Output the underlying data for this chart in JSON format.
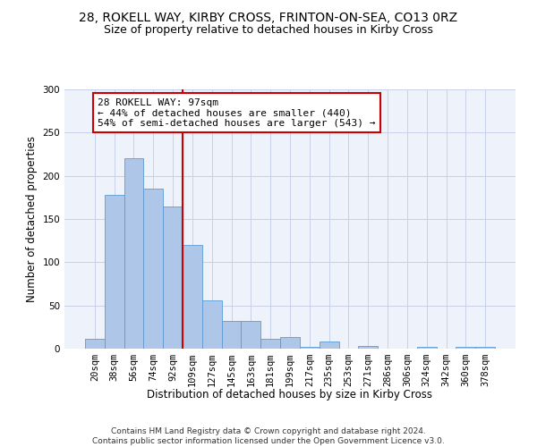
{
  "title1": "28, ROKELL WAY, KIRBY CROSS, FRINTON-ON-SEA, CO13 0RZ",
  "title2": "Size of property relative to detached houses in Kirby Cross",
  "xlabel": "Distribution of detached houses by size in Kirby Cross",
  "ylabel": "Number of detached properties",
  "categories": [
    "20sqm",
    "38sqm",
    "56sqm",
    "74sqm",
    "92sqm",
    "109sqm",
    "127sqm",
    "145sqm",
    "163sqm",
    "181sqm",
    "199sqm",
    "217sqm",
    "235sqm",
    "253sqm",
    "271sqm",
    "286sqm",
    "306sqm",
    "324sqm",
    "342sqm",
    "360sqm",
    "378sqm"
  ],
  "values": [
    11,
    178,
    220,
    185,
    165,
    120,
    56,
    32,
    32,
    11,
    13,
    2,
    8,
    0,
    3,
    0,
    0,
    2,
    0,
    2,
    2
  ],
  "bar_color": "#aec6e8",
  "bar_edge_color": "#5b9bd5",
  "vline_color": "#cc0000",
  "vline_x_index": 4,
  "annotation_text": "28 ROKELL WAY: 97sqm\n← 44% of detached houses are smaller (440)\n54% of semi-detached houses are larger (543) →",
  "annotation_box_color": "white",
  "annotation_box_edge_color": "#cc0000",
  "ylim": [
    0,
    300
  ],
  "yticks": [
    0,
    50,
    100,
    150,
    200,
    250,
    300
  ],
  "footer": "Contains HM Land Registry data © Crown copyright and database right 2024.\nContains public sector information licensed under the Open Government Licence v3.0.",
  "bg_color": "#eef2fb",
  "grid_color": "#c8d0e8",
  "title_fontsize": 10,
  "subtitle_fontsize": 9,
  "tick_fontsize": 7.5,
  "ylabel_fontsize": 8.5,
  "xlabel_fontsize": 8.5,
  "annotation_fontsize": 8,
  "footer_fontsize": 6.5
}
